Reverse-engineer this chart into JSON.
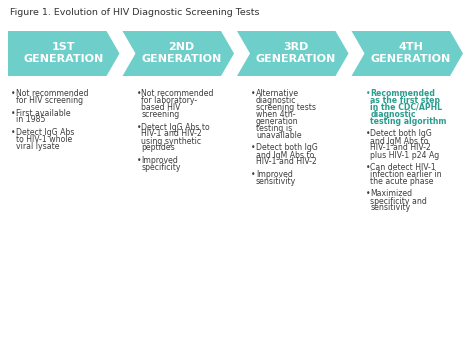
{
  "title": "Figure 1. Evolution of HIV Diagnostic Screening Tests",
  "title_fontsize": 6.8,
  "background_color": "#ffffff",
  "arrow_color": "#6ececa",
  "arrow_text_color": "#ffffff",
  "body_text_color": "#3d3d3d",
  "highlight_text_color": "#2a9d8f",
  "generations": [
    "1ST\nGENERATION",
    "2ND\nGENERATION",
    "3RD\nGENERATION",
    "4TH\nGENERATION"
  ],
  "bullet_points": [
    [
      "Not recommended\nfor HIV screening",
      "First available\nin 1985",
      "Detect IgG Abs\nto HIV-1 whole\nviral lysate"
    ],
    [
      "Not recommended\nfor laboratory-\nbased HIV\nscreening",
      "Detect IgG Abs to\nHIV-1 and HIV-2\nusing synthetic\npeptides",
      "Improved\nspecificity"
    ],
    [
      "Alternative\ndiagnostic\nscreening tests\nwhen 4th-\ngeneration\ntesting is\nunavailable",
      "Detect both IgG\nand IgM Abs to\nHIV-1 and HIV-2",
      "Improved\nsensitivity"
    ],
    [
      "Recommended\nas the first step\nin the CDC/APHL\ndiagnostic\ntesting algorithm",
      "Detect both IgG\nand IgM Abs to\nHIV-1 and HIV-2\nplus HIV-1 p24 Ag",
      "Can detect HIV-1\ninfection earlier in\nthe acute phase",
      "Maximized\nspecificity and\nsensitivity"
    ]
  ]
}
